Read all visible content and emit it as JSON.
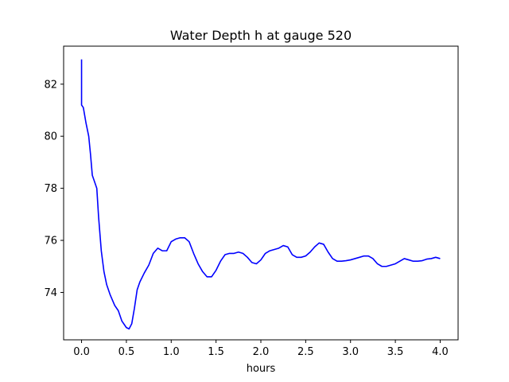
{
  "chart_data": {
    "type": "line",
    "title": "Water Depth h at gauge 520",
    "xlabel": "hours",
    "ylabel": "",
    "xlim": [
      -0.2,
      4.2
    ],
    "ylim": [
      72.18,
      83.46
    ],
    "xticks": [
      0.0,
      0.5,
      1.0,
      1.5,
      2.0,
      2.5,
      3.0,
      3.5,
      4.0
    ],
    "xtick_labels": [
      "0.0",
      "0.5",
      "1.0",
      "1.5",
      "2.0",
      "2.5",
      "3.0",
      "3.5",
      "4.0"
    ],
    "yticks": [
      74,
      76,
      78,
      80,
      82
    ],
    "ytick_labels": [
      "74",
      "76",
      "78",
      "80",
      "82"
    ],
    "grid": false,
    "series": [
      {
        "color": "#0000ff",
        "x": [
          0.0,
          0.0,
          0.02,
          0.05,
          0.08,
          0.1,
          0.12,
          0.14,
          0.17,
          0.19,
          0.22,
          0.25,
          0.28,
          0.32,
          0.37,
          0.41,
          0.45,
          0.5,
          0.53,
          0.56,
          0.59,
          0.62,
          0.65,
          0.7,
          0.75,
          0.8,
          0.85,
          0.9,
          0.95,
          1.0,
          1.05,
          1.1,
          1.15,
          1.2,
          1.25,
          1.3,
          1.35,
          1.4,
          1.45,
          1.5,
          1.55,
          1.6,
          1.65,
          1.7,
          1.75,
          1.8,
          1.85,
          1.9,
          1.95,
          2.0,
          2.05,
          2.1,
          2.15,
          2.2,
          2.25,
          2.3,
          2.35,
          2.4,
          2.45,
          2.5,
          2.55,
          2.6,
          2.65,
          2.7,
          2.75,
          2.8,
          2.85,
          2.9,
          2.95,
          3.0,
          3.05,
          3.1,
          3.15,
          3.2,
          3.25,
          3.3,
          3.35,
          3.4,
          3.45,
          3.5,
          3.55,
          3.6,
          3.65,
          3.7,
          3.75,
          3.8,
          3.85,
          3.9,
          3.95,
          4.0
        ],
        "y": [
          82.95,
          81.2,
          81.1,
          80.5,
          80.0,
          79.3,
          78.5,
          78.3,
          78.0,
          76.9,
          75.6,
          74.8,
          74.3,
          73.9,
          73.5,
          73.3,
          72.9,
          72.65,
          72.6,
          72.8,
          73.4,
          74.1,
          74.4,
          74.75,
          75.05,
          75.5,
          75.7,
          75.6,
          75.6,
          75.95,
          76.05,
          76.1,
          76.1,
          75.95,
          75.5,
          75.1,
          74.8,
          74.6,
          74.6,
          74.85,
          75.2,
          75.45,
          75.5,
          75.5,
          75.55,
          75.5,
          75.35,
          75.15,
          75.1,
          75.25,
          75.5,
          75.6,
          75.65,
          75.7,
          75.8,
          75.75,
          75.45,
          75.35,
          75.35,
          75.4,
          75.55,
          75.75,
          75.9,
          75.85,
          75.55,
          75.3,
          75.2,
          75.2,
          75.22,
          75.25,
          75.3,
          75.35,
          75.4,
          75.4,
          75.3,
          75.1,
          75.0,
          75.0,
          75.05,
          75.1,
          75.2,
          75.3,
          75.25,
          75.2,
          75.2,
          75.22,
          75.28,
          75.3,
          75.35,
          75.3
        ]
      }
    ]
  }
}
